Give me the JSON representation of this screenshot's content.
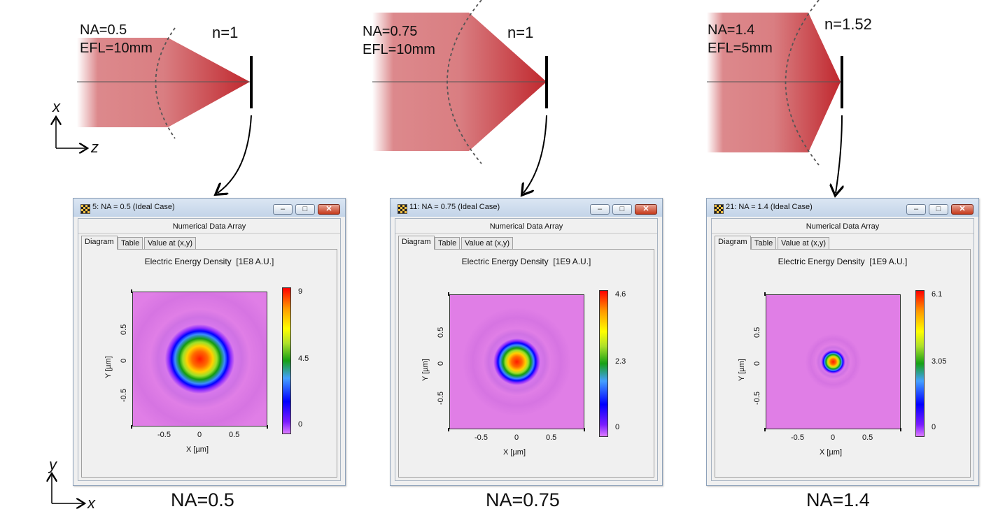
{
  "setups": [
    {
      "na_label": "NA=0.5",
      "efl_label": "EFL=10mm",
      "n_label": "n=1"
    },
    {
      "na_label": "NA=0.75",
      "efl_label": "EFL=10mm",
      "n_label": "n=1"
    },
    {
      "na_label": "NA=1.4",
      "efl_label": "EFL=5mm",
      "n_label": "n=1.52"
    }
  ],
  "axes_top": {
    "x": "x",
    "z": "z"
  },
  "axes_bottom": {
    "y": "y",
    "x": "x"
  },
  "windows": [
    {
      "title": "5: NA = 0.5 (Ideal Case)",
      "subtitle": "Numerical Data Array",
      "tabs": [
        "Diagram",
        "Table",
        "Value at (x,y)"
      ],
      "active_tab": "Diagram",
      "plot_title": "Electric Energy Density  [1E8 A.U.]",
      "x_label": "X [µm]",
      "y_label": "Y [µm]",
      "x_ticks": [
        "-0.5",
        "0",
        "0.5"
      ],
      "y_ticks": [
        "0.5",
        "0",
        "-0.5"
      ],
      "colorbar_ticks": [
        "9",
        "4.5",
        "0"
      ],
      "spot_fraction": 0.46
    },
    {
      "title": "11: NA = 0.75 (Ideal Case)",
      "subtitle": "Numerical Data Array",
      "tabs": [
        "Diagram",
        "Table",
        "Value at (x,y)"
      ],
      "active_tab": "Diagram",
      "plot_title": "Electric Energy Density  [1E9 A.U.]",
      "x_label": "X [µm]",
      "y_label": "Y [µm]",
      "x_ticks": [
        "-0.5",
        "0",
        "0.5"
      ],
      "y_ticks": [
        "0.5",
        "0",
        "-0.5"
      ],
      "colorbar_ticks": [
        "4.6",
        "2.3",
        "0"
      ],
      "spot_fraction": 0.31
    },
    {
      "title": "21: NA = 1.4 (Ideal Case)",
      "subtitle": "Numerical Data Array",
      "tabs": [
        "Diagram",
        "Table",
        "Value at (x,y)"
      ],
      "active_tab": "Diagram",
      "plot_title": "Electric Energy Density  [1E9 A.U.]",
      "x_label": "X [µm]",
      "y_label": "Y [µm]",
      "x_ticks": [
        "-0.5",
        "0",
        "0.5"
      ],
      "y_ticks": [
        "0.5",
        "0",
        "-0.5"
      ],
      "colorbar_ticks": [
        "6.1",
        "3.05",
        "0"
      ],
      "spot_fraction": 0.16
    }
  ],
  "window_buttons": {
    "minimize": "–",
    "maximize": "□",
    "close": "✕"
  },
  "captions": [
    "NA=0.5",
    "NA=0.75",
    "NA=1.4"
  ],
  "colors": {
    "beam": "#c0282e",
    "plot_bg": "#e07ee6",
    "window_bg": "#f0f0f0",
    "titlebar": "#c3d4e8",
    "close_button": "#c53a1c"
  }
}
